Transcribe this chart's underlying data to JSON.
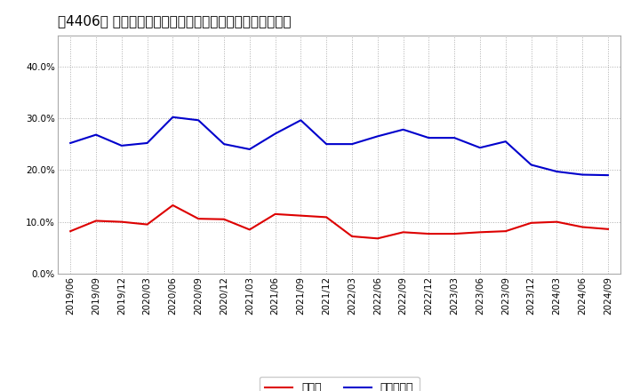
{
  "title": "［4406］ 現預金、有利子負債の総資産に対する比率の推移",
  "x_labels": [
    "2019/06",
    "2019/09",
    "2019/12",
    "2020/03",
    "2020/06",
    "2020/09",
    "2020/12",
    "2021/03",
    "2021/06",
    "2021/09",
    "2021/12",
    "2022/03",
    "2022/06",
    "2022/09",
    "2022/12",
    "2023/03",
    "2023/06",
    "2023/09",
    "2023/12",
    "2024/03",
    "2024/06",
    "2024/09"
  ],
  "cash_values": [
    0.082,
    0.102,
    0.1,
    0.095,
    0.132,
    0.106,
    0.105,
    0.085,
    0.115,
    0.112,
    0.109,
    0.072,
    0.068,
    0.08,
    0.077,
    0.077,
    0.08,
    0.082,
    0.098,
    0.1,
    0.09,
    0.086
  ],
  "debt_values": [
    0.252,
    0.268,
    0.247,
    0.252,
    0.302,
    0.296,
    0.25,
    0.24,
    0.27,
    0.296,
    0.25,
    0.25,
    0.265,
    0.278,
    0.262,
    0.262,
    0.243,
    0.255,
    0.21,
    0.197,
    0.191,
    0.19
  ],
  "cash_color": "#dd0000",
  "debt_color": "#0000cc",
  "legend_cash": "現預金",
  "legend_debt": "有利子負債",
  "ylim": [
    0.0,
    0.46
  ],
  "yticks": [
    0.0,
    0.1,
    0.2,
    0.3,
    0.4
  ],
  "background_color": "#ffffff",
  "plot_bg_color": "#ffffff",
  "grid_color": "#aaaaaa",
  "title_fontsize": 11,
  "tick_fontsize": 7.5,
  "legend_fontsize": 9
}
